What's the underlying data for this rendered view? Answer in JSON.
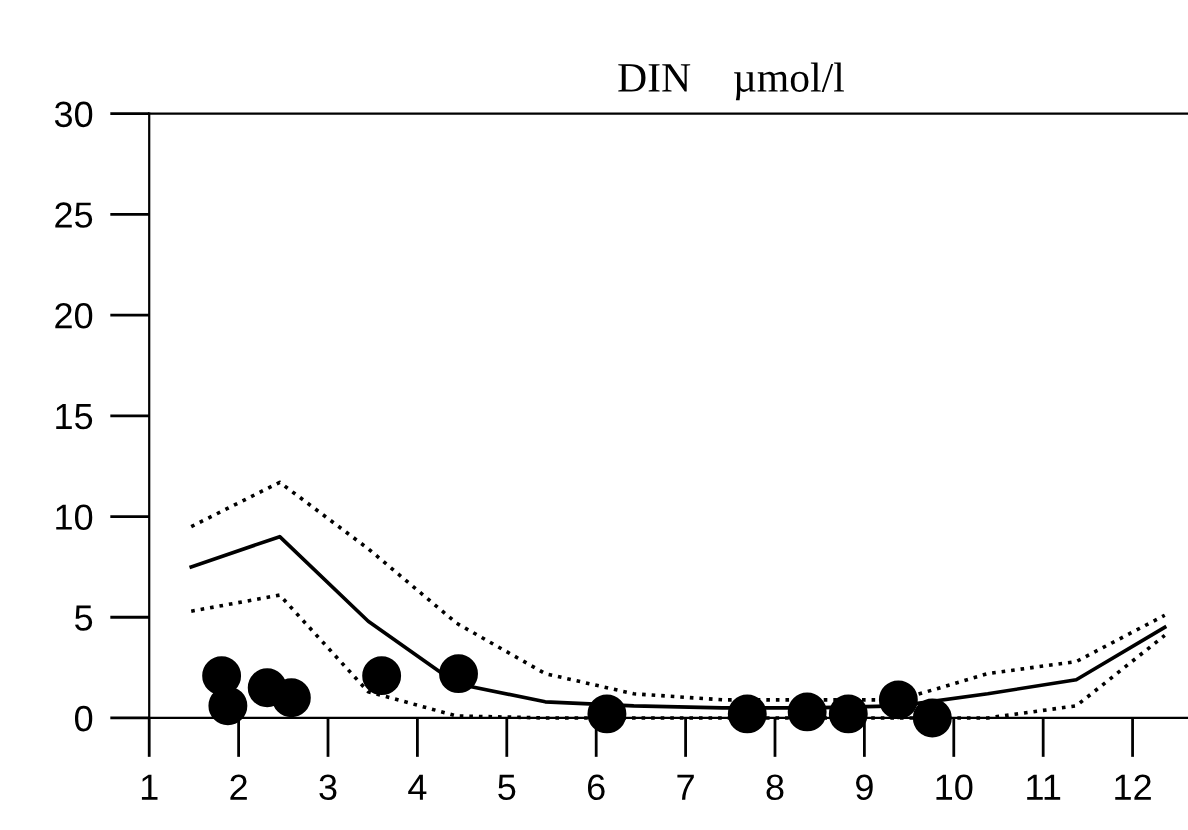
{
  "chart_data": {
    "type": "line",
    "title": "DIN    µmol/l",
    "xlim": [
      1,
      12.62
    ],
    "xticks": [
      1,
      2,
      3,
      4,
      5,
      6,
      7,
      8,
      9,
      10,
      11,
      12
    ],
    "ylim": [
      0,
      30
    ],
    "yticks": [
      0,
      5,
      10,
      15,
      20,
      25,
      30
    ],
    "grid": false,
    "legend": false,
    "series": [
      {
        "color": "#000000",
        "line_style": "dotted",
        "marker": "none",
        "x": [
          1.47,
          2.46,
          3.45,
          4.44,
          5.43,
          6.42,
          7.41,
          8.4,
          9.39,
          10.38,
          11.37,
          12.36
        ],
        "values": [
          9.5,
          11.7,
          8.4,
          4.7,
          2.2,
          1.2,
          0.9,
          0.9,
          0.9,
          2.2,
          2.8,
          5.1
        ]
      },
      {
        "color": "#000000",
        "line_style": "solid",
        "marker": "none",
        "x": [
          1.47,
          2.46,
          3.45,
          4.44,
          5.43,
          6.42,
          7.41,
          8.4,
          9.39,
          10.38,
          11.37,
          12.36
        ],
        "values": [
          7.5,
          9.0,
          4.8,
          1.7,
          0.8,
          0.6,
          0.5,
          0.5,
          0.6,
          1.2,
          1.9,
          4.5
        ]
      },
      {
        "color": "#000000",
        "line_style": "dotted",
        "marker": "none",
        "x": [
          1.47,
          2.46,
          3.45,
          4.44,
          5.43,
          6.42,
          7.41,
          8.4,
          9.39,
          10.38,
          11.37,
          12.36
        ],
        "values": [
          5.3,
          6.1,
          1.3,
          0.1,
          0,
          0,
          0,
          0,
          0,
          0,
          0.6,
          4.1
        ]
      },
      {
        "type": "scatter",
        "color": "#000000",
        "marker": "circle",
        "x": [
          1.81,
          1.88,
          2.32,
          2.59,
          3.6,
          4.46,
          6.12,
          7.69,
          8.36,
          8.82,
          9.38,
          9.76
        ],
        "values": [
          2.1,
          0.6,
          1.5,
          1.0,
          2.1,
          2.2,
          0.2,
          0.2,
          0.3,
          0.2,
          0.9,
          0.0
        ]
      }
    ]
  }
}
